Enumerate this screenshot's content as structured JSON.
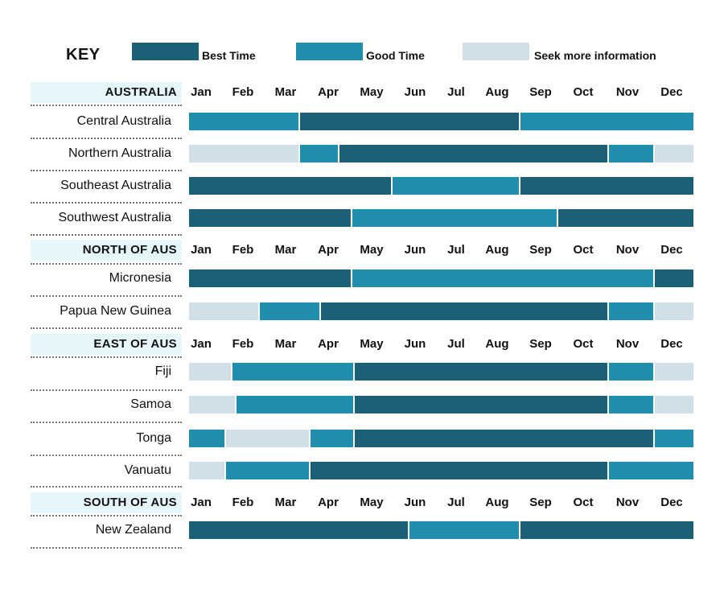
{
  "key": {
    "title": "KEY",
    "items": [
      {
        "status": "best",
        "label": "Best Time",
        "color": "#1b6076"
      },
      {
        "status": "good",
        "label": "Good Time",
        "color": "#1f8fad"
      },
      {
        "status": "seek",
        "label": "Seek more information",
        "color": "#d1dfe8"
      }
    ]
  },
  "chart_data": {
    "type": "gantt",
    "title": "",
    "months": [
      "Jan",
      "Feb",
      "Mar",
      "Apr",
      "May",
      "Jun",
      "Jul",
      "Aug",
      "Sep",
      "Oct",
      "Nov",
      "Dec"
    ],
    "x_unit": "month (0 = start of Jan, 12 = end of Dec)",
    "colors": {
      "best": "#1b6076",
      "good": "#1f8fad",
      "seek": "#d1dfe8"
    },
    "sections": [
      {
        "name": "AUSTRALIA",
        "rows": [
          {
            "name": "Central Australia",
            "segments": [
              {
                "start": 0,
                "end": 2.6,
                "status": "good"
              },
              {
                "start": 2.6,
                "end": 7.85,
                "status": "best"
              },
              {
                "start": 7.85,
                "end": 12,
                "status": "good"
              }
            ]
          },
          {
            "name": "Northern Australia",
            "segments": [
              {
                "start": 0,
                "end": 2.6,
                "status": "seek"
              },
              {
                "start": 2.6,
                "end": 3.55,
                "status": "good"
              },
              {
                "start": 3.55,
                "end": 9.95,
                "status": "best"
              },
              {
                "start": 9.95,
                "end": 11.05,
                "status": "good"
              },
              {
                "start": 11.05,
                "end": 12,
                "status": "seek"
              }
            ]
          },
          {
            "name": "Southeast Australia",
            "segments": [
              {
                "start": 0,
                "end": 4.8,
                "status": "best"
              },
              {
                "start": 4.8,
                "end": 7.85,
                "status": "good"
              },
              {
                "start": 7.85,
                "end": 12,
                "status": "best"
              }
            ]
          },
          {
            "name": "Southwest Australia",
            "segments": [
              {
                "start": 0,
                "end": 3.85,
                "status": "best"
              },
              {
                "start": 3.85,
                "end": 8.75,
                "status": "good"
              },
              {
                "start": 8.75,
                "end": 12,
                "status": "best"
              }
            ]
          }
        ]
      },
      {
        "name": "NORTH OF AUS",
        "rows": [
          {
            "name": "Micronesia",
            "segments": [
              {
                "start": 0,
                "end": 3.85,
                "status": "best"
              },
              {
                "start": 3.85,
                "end": 11.05,
                "status": "good"
              },
              {
                "start": 11.05,
                "end": 12,
                "status": "best"
              }
            ]
          },
          {
            "name": "Papua New Guinea",
            "segments": [
              {
                "start": 0,
                "end": 1.65,
                "status": "seek"
              },
              {
                "start": 1.65,
                "end": 3.1,
                "status": "good"
              },
              {
                "start": 3.1,
                "end": 9.95,
                "status": "best"
              },
              {
                "start": 9.95,
                "end": 11.05,
                "status": "good"
              },
              {
                "start": 11.05,
                "end": 12,
                "status": "seek"
              }
            ]
          }
        ]
      },
      {
        "name": "EAST OF AUS",
        "rows": [
          {
            "name": "Fiji",
            "segments": [
              {
                "start": 0,
                "end": 1.0,
                "status": "seek"
              },
              {
                "start": 1.0,
                "end": 3.9,
                "status": "good"
              },
              {
                "start": 3.9,
                "end": 9.95,
                "status": "best"
              },
              {
                "start": 9.95,
                "end": 11.05,
                "status": "good"
              },
              {
                "start": 11.05,
                "end": 12,
                "status": "seek"
              }
            ]
          },
          {
            "name": "Samoa",
            "segments": [
              {
                "start": 0,
                "end": 1.1,
                "status": "seek"
              },
              {
                "start": 1.1,
                "end": 3.9,
                "status": "good"
              },
              {
                "start": 3.9,
                "end": 9.95,
                "status": "best"
              },
              {
                "start": 9.95,
                "end": 11.05,
                "status": "good"
              },
              {
                "start": 11.05,
                "end": 12,
                "status": "seek"
              }
            ]
          },
          {
            "name": "Tonga",
            "segments": [
              {
                "start": 0,
                "end": 0.85,
                "status": "good"
              },
              {
                "start": 0.85,
                "end": 2.85,
                "status": "seek"
              },
              {
                "start": 2.85,
                "end": 3.9,
                "status": "good"
              },
              {
                "start": 3.9,
                "end": 11.05,
                "status": "best"
              },
              {
                "start": 11.05,
                "end": 12,
                "status": "good"
              }
            ]
          },
          {
            "name": "Vanuatu",
            "segments": [
              {
                "start": 0,
                "end": 0.85,
                "status": "seek"
              },
              {
                "start": 0.85,
                "end": 2.85,
                "status": "good"
              },
              {
                "start": 2.85,
                "end": 9.95,
                "status": "best"
              },
              {
                "start": 9.95,
                "end": 12,
                "status": "good"
              }
            ]
          }
        ]
      },
      {
        "name": "SOUTH OF AUS",
        "rows": [
          {
            "name": "New Zealand",
            "segments": [
              {
                "start": 0,
                "end": 5.2,
                "status": "best"
              },
              {
                "start": 5.2,
                "end": 7.85,
                "status": "good"
              },
              {
                "start": 7.85,
                "end": 12,
                "status": "best"
              }
            ]
          }
        ]
      }
    ]
  }
}
